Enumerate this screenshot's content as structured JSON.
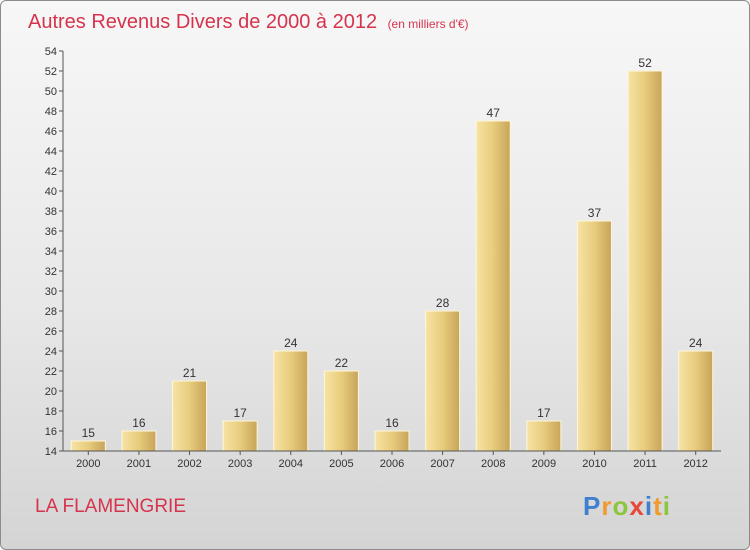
{
  "title": "Autres Revenus Divers de 2000 à 2012",
  "unit": "(en milliers d'€)",
  "place": "LA FLAMENGRIE",
  "logo": {
    "letters": [
      "P",
      "r",
      "o",
      "x",
      "i",
      "t",
      "i"
    ],
    "colors": [
      "#3f7fd0",
      "#f29a2e",
      "#8cc63f",
      "#e8463a",
      "#3f7fd0",
      "#f29a2e",
      "#8cc63f"
    ]
  },
  "colors": {
    "bar": "#e6c876",
    "bar_highlight": "#f7e4a6",
    "title": "#d6334d",
    "text": "#333333"
  },
  "chart_data": {
    "type": "bar",
    "categories": [
      "2000",
      "2001",
      "2002",
      "2003",
      "2004",
      "2005",
      "2006",
      "2007",
      "2008",
      "2009",
      "2010",
      "2011",
      "2012"
    ],
    "values": [
      15,
      16,
      21,
      17,
      24,
      22,
      16,
      28,
      47,
      17,
      37,
      52,
      24
    ],
    "ylim": [
      14,
      54
    ],
    "yticks": [
      14,
      16,
      18,
      20,
      22,
      24,
      26,
      28,
      30,
      32,
      34,
      36,
      38,
      40,
      42,
      44,
      46,
      48,
      50,
      52,
      54
    ],
    "grid": false
  }
}
